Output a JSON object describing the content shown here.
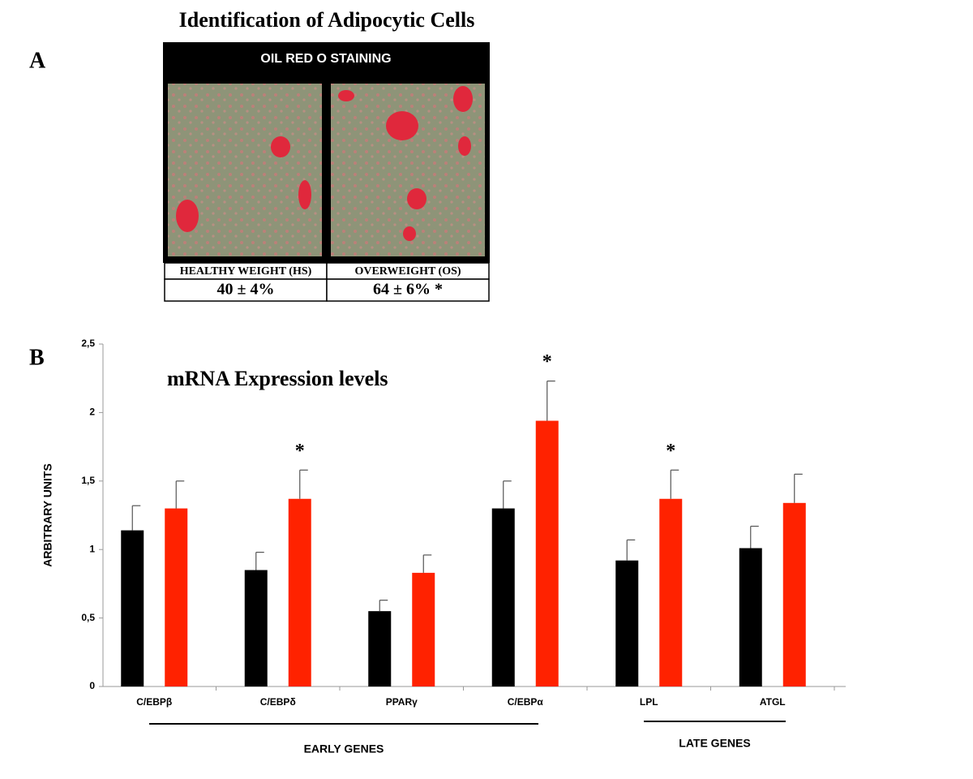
{
  "panel_a": {
    "label": "A",
    "title": "Identification of Adipocytic Cells",
    "header": "OIL RED O STAINING",
    "columns": [
      "HEALTHY WEIGHT (HS)",
      "OVERWEIGHT (OS)"
    ],
    "values": [
      "40 ± 4%",
      "64 ± 6% *"
    ]
  },
  "panel_b": {
    "label": "B"
  },
  "chart_data": {
    "type": "bar",
    "title": "mRNA Expression levels",
    "y_label": "ARBITRARY UNITS",
    "categories": [
      "C/EBPβ",
      "C/EBPδ",
      "PPARγ",
      "C/EBPα",
      "LPL",
      "ATGL"
    ],
    "series": [
      {
        "color": "#000000",
        "values": [
          1.14,
          0.85,
          0.55,
          1.3,
          0.92,
          1.01
        ],
        "errors": [
          0.18,
          0.13,
          0.08,
          0.2,
          0.15,
          0.16
        ]
      },
      {
        "color": "#ff2200",
        "values": [
          1.3,
          1.37,
          0.83,
          1.94,
          1.37,
          1.34
        ],
        "errors": [
          0.2,
          0.21,
          0.13,
          0.29,
          0.21,
          0.21
        ],
        "significance": [
          null,
          "*",
          null,
          "*",
          "*",
          null
        ]
      }
    ],
    "ylim": [
      0,
      2.5
    ],
    "yticks": [
      0,
      {
        "value": 0.5,
        "label": "0,5"
      },
      1,
      {
        "value": 1.5,
        "label": "1,5"
      },
      2,
      {
        "value": 2.5,
        "label": "2,5"
      }
    ],
    "groups": [
      {
        "label": "EARLY GENES",
        "count": 4
      },
      {
        "label": "LATE GENES",
        "count": 2
      }
    ]
  }
}
